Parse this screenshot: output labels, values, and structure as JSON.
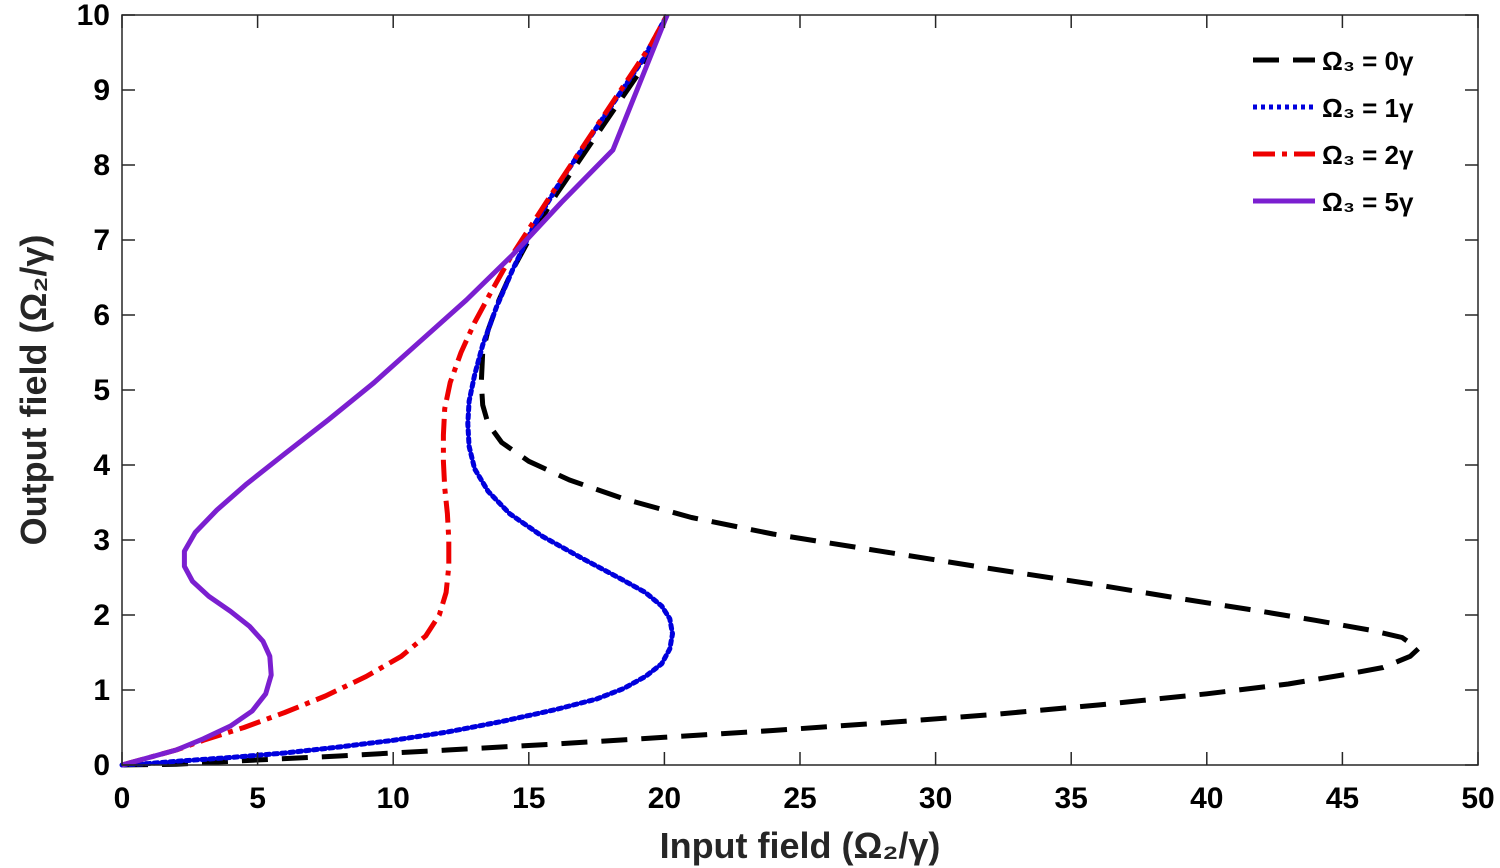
{
  "chart_data": {
    "type": "line",
    "xlabel": "Input  field  (Ω₂/γ)",
    "ylabel": "Output  field  (Ω₂/γ)",
    "xlim": [
      0,
      50
    ],
    "ylim": [
      0,
      10
    ],
    "xticks": [
      0,
      5,
      10,
      15,
      20,
      25,
      30,
      35,
      40,
      45,
      50
    ],
    "yticks": [
      0,
      1,
      2,
      3,
      4,
      5,
      6,
      7,
      8,
      9,
      10
    ],
    "grid": false,
    "legend_position": "top-right",
    "series": [
      {
        "name": "Ω₃  =  0γ",
        "color": "#000000",
        "style": "dashed",
        "x": [
          0,
          2,
          4,
          8,
          12,
          16,
          20,
          24,
          28,
          32,
          36,
          40,
          43,
          45,
          46.5,
          47.5,
          47.8,
          47.2,
          46,
          44,
          42,
          39,
          36,
          32,
          28,
          24,
          21,
          18.5,
          16.5,
          15,
          14,
          13.5,
          13.3,
          13.25,
          13.3,
          13.5,
          13.9,
          14.4,
          15,
          16,
          17.5,
          19.2,
          20.1
        ],
        "y": [
          0,
          0.01,
          0.05,
          0.12,
          0.2,
          0.28,
          0.37,
          0.46,
          0.56,
          0.67,
          0.8,
          0.95,
          1.08,
          1.2,
          1.3,
          1.45,
          1.55,
          1.7,
          1.8,
          1.93,
          2.05,
          2.22,
          2.4,
          2.62,
          2.85,
          3.08,
          3.3,
          3.55,
          3.8,
          4.05,
          4.3,
          4.55,
          4.8,
          5.1,
          5.5,
          5.8,
          6.2,
          6.6,
          7,
          7.6,
          8.4,
          9.3,
          10
        ]
      },
      {
        "name": "Ω₃  =  1γ",
        "color": "#0000dd",
        "style": "dotted",
        "x": [
          0,
          1,
          2,
          4,
          6,
          8,
          10,
          12,
          14,
          16,
          17.5,
          18.5,
          19.3,
          19.9,
          20.2,
          20.3,
          20.2,
          19.9,
          19.3,
          18.3,
          17,
          15.5,
          14.3,
          13.5,
          13,
          12.8,
          12.75,
          12.8,
          13,
          13.3,
          13.8,
          14.4,
          15.2,
          16.2,
          17.5,
          19.2,
          20.1
        ],
        "y": [
          0,
          0.02,
          0.05,
          0.1,
          0.16,
          0.24,
          0.33,
          0.44,
          0.58,
          0.74,
          0.88,
          1.02,
          1.18,
          1.35,
          1.55,
          1.75,
          1.95,
          2.12,
          2.3,
          2.5,
          2.75,
          3.05,
          3.35,
          3.65,
          3.95,
          4.25,
          4.55,
          4.85,
          5.2,
          5.6,
          6.1,
          6.6,
          7.2,
          7.8,
          8.5,
          9.4,
          10
        ]
      },
      {
        "name": "Ω₃  =  2γ",
        "color": "#ee0000",
        "style": "dashdot",
        "x": [
          0,
          1,
          2,
          3,
          4.5,
          6,
          7.5,
          9,
          10.3,
          11.2,
          11.7,
          11.95,
          12.05,
          12.05,
          12,
          11.9,
          11.85,
          11.85,
          11.9,
          12.1,
          12.5,
          13,
          13.6,
          14.3,
          15.1,
          16,
          17.1,
          18.3,
          19.5,
          20.1
        ],
        "y": [
          0,
          0.1,
          0.2,
          0.33,
          0.5,
          0.7,
          0.92,
          1.18,
          1.45,
          1.72,
          2,
          2.3,
          2.65,
          3,
          3.35,
          3.7,
          4.05,
          4.4,
          4.75,
          5.1,
          5.5,
          5.9,
          6.3,
          6.75,
          7.2,
          7.7,
          8.3,
          8.95,
          9.6,
          10
        ]
      },
      {
        "name": "Ω₃  =  5γ",
        "color": "#7b1fd0",
        "style": "solid",
        "x": [
          0,
          1,
          2,
          3,
          4,
          4.8,
          5.3,
          5.5,
          5.45,
          5.2,
          4.7,
          4,
          3.2,
          2.6,
          2.3,
          2.3,
          2.7,
          3.5,
          4.6,
          6,
          7.6,
          9.3,
          11,
          12.7,
          14.4,
          16.2,
          18.1,
          20.1
        ],
        "y": [
          0,
          0.1,
          0.2,
          0.35,
          0.52,
          0.72,
          0.95,
          1.2,
          1.45,
          1.65,
          1.85,
          2.05,
          2.25,
          2.45,
          2.65,
          2.85,
          3.1,
          3.4,
          3.75,
          4.15,
          4.6,
          5.1,
          5.65,
          6.2,
          6.8,
          7.5,
          8.2,
          10
        ]
      }
    ]
  }
}
